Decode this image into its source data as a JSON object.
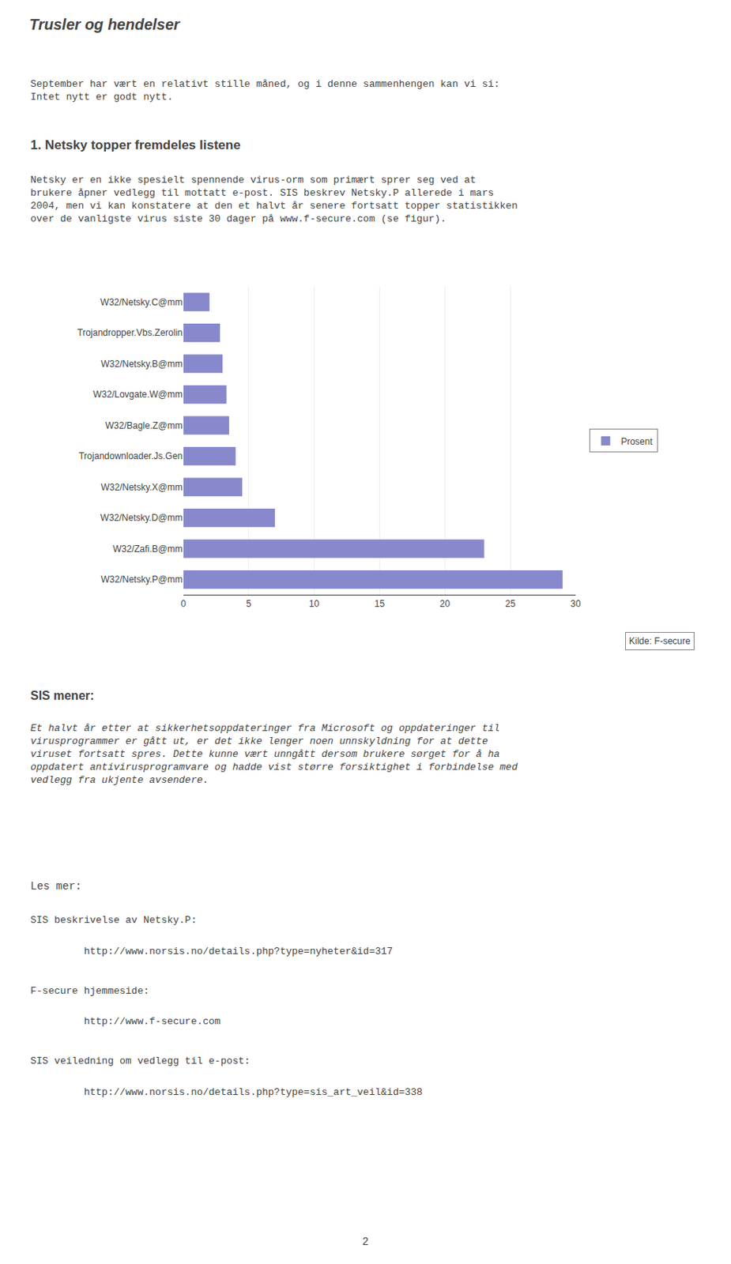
{
  "chart_data": {
    "type": "bar",
    "orientation": "horizontal",
    "title": "Trusler og hendelser",
    "categories": [
      "W32/Netsky.C@mm",
      "Trojandropper.Vbs.Zerolin",
      "W32/Netsky.B@mm",
      "W32/Lovgate.W@mm",
      "W32/Bagle.Z@mm",
      "Trojandownloader.Js.Gen",
      "W32/Netsky.X@mm",
      "W32/Netsky.D@mm",
      "W32/Zafi.B@mm",
      "W32/Netsky.P@mm"
    ],
    "series": [
      {
        "name": "Prosent",
        "color": "#8888cc",
        "values": [
          2.0,
          2.8,
          3.0,
          3.3,
          3.5,
          4.0,
          4.5,
          7.0,
          23.0,
          29.0
        ]
      }
    ],
    "xlim": [
      0,
      30
    ],
    "xticks": [
      0,
      5,
      10,
      15,
      20,
      25,
      30
    ],
    "grid": true,
    "legend": "right",
    "annotations": [
      "September har vært en relativt stille måned, og i denne sammenhengen kan vi si:\nIntet nytt er godt nytt.",
      "1. Netsky topper fremdeles listene",
      "Netsky er en ikke spesielt spennende virus-orm som primært sprer seg ved at\nbrukere åpner vedlegg til mottatt e-post. SIS beskrev Netsky.P allerede i mars\n2004, men vi kan konstatere at den et halvt år senere fortsatt topper statistikken\nover de vanligste virus siste 30 dager på www.f-secure.com (se figur).",
      "Kilde: F-secure",
      "SIS mener:",
      "Et halvt år etter at sikkerhetsoppdateringer fra Microsoft og oppdateringer til\nvirusprogrammer er gått ut, er det ikke lenger noen unnskyldning for at dette\nviruset fortsatt spres. Dette kunne vært unngått dersom brukere sørget for å ha\noppdatert antivirusprogramvare og hadde vist større forsiktighet i forbindelse med\nvedlegg fra ukjente avsendere.",
      "Les mer:",
      "SIS beskrivelse av Netsky.P:",
      "         http://www.norsis.no/details.php?type=nyheter&id=317",
      "F-secure hjemmeside:",
      "         http://www.f-secure.com",
      "SIS veiledning om vedlegg til e-post:",
      "         http://www.norsis.no/details.php?type=sis_art_veil&id=338",
      "2"
    ]
  }
}
